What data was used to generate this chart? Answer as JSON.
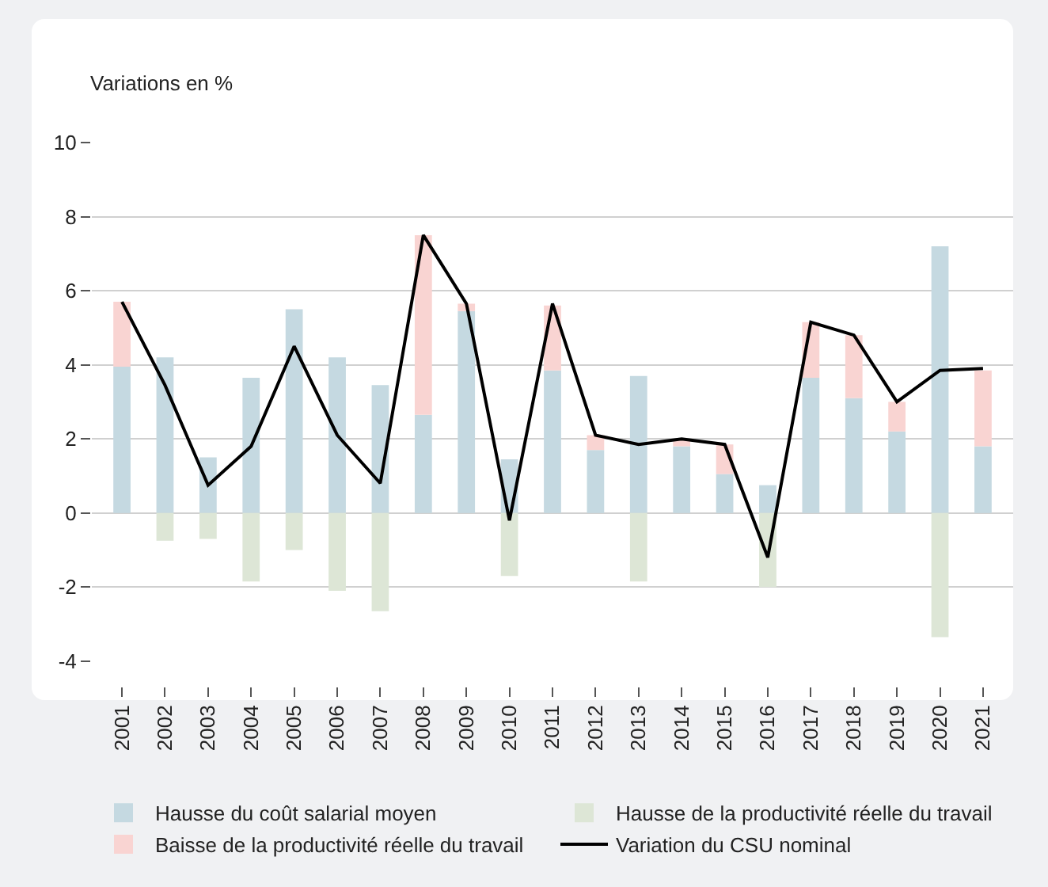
{
  "chart_data": {
    "type": "bar",
    "stacked": true,
    "ylabel": "Variations en %",
    "categories": [
      "2001",
      "2002",
      "2003",
      "2004",
      "2005",
      "2006",
      "2007",
      "2008",
      "2009",
      "2010",
      "2011",
      "2012",
      "2013",
      "2014",
      "2015",
      "2016",
      "2017",
      "2018",
      "2019",
      "2020",
      "2021"
    ],
    "series": [
      {
        "name": "Hausse du coût salarial moyen",
        "color": "#c5d9e1",
        "values": [
          3.95,
          4.2,
          1.5,
          3.65,
          5.5,
          4.2,
          3.45,
          2.65,
          5.45,
          1.45,
          3.85,
          1.7,
          3.7,
          1.8,
          1.05,
          0.75,
          3.65,
          3.1,
          2.2,
          7.2,
          1.8
        ]
      },
      {
        "name": "Hausse de la productivité réelle du travail",
        "color": "#dde6d6",
        "values": [
          null,
          -0.75,
          -0.7,
          -1.85,
          -1.0,
          -2.1,
          -2.65,
          null,
          null,
          -1.7,
          null,
          null,
          -1.85,
          null,
          null,
          -2.0,
          null,
          null,
          null,
          -3.35,
          null
        ]
      },
      {
        "name": "Baisse de la productivité réelle du travail",
        "color": "#f9d4d2",
        "values": [
          1.75,
          null,
          null,
          null,
          null,
          null,
          null,
          4.85,
          0.2,
          null,
          1.75,
          0.4,
          null,
          0.2,
          0.8,
          null,
          1.5,
          1.7,
          0.8,
          null,
          2.05
        ]
      },
      {
        "name": "Variation du CSU nominal",
        "type": "line",
        "color": "#000000",
        "values": [
          5.7,
          3.45,
          0.75,
          1.8,
          4.5,
          2.1,
          0.8,
          7.5,
          5.65,
          -0.2,
          5.65,
          2.1,
          1.85,
          2.0,
          1.85,
          -1.2,
          5.15,
          4.8,
          3.0,
          3.85,
          3.9
        ]
      }
    ],
    "ylim": [
      -4,
      10
    ],
    "yticks": [
      -4,
      -2,
      0,
      2,
      4,
      6,
      8,
      10
    ],
    "grid": "y",
    "legend": "bottom",
    "marker": "none",
    "line_style": "solid"
  }
}
